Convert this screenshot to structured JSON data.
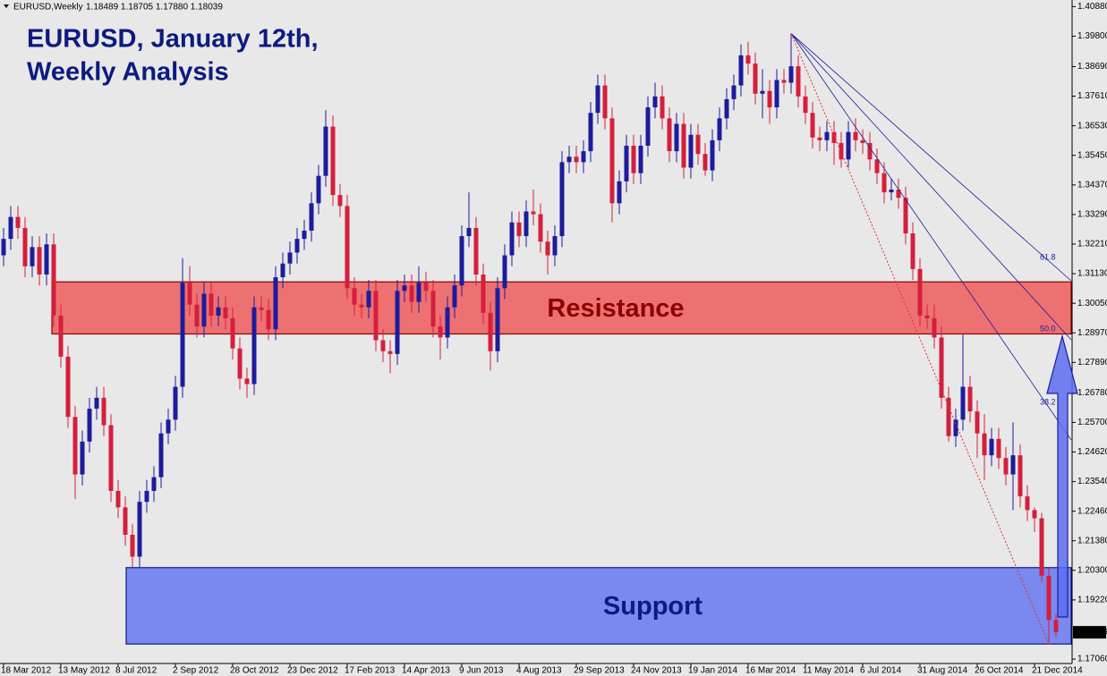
{
  "chart_data": {
    "type": "candlestick",
    "symbol": "EURUSD,Weekly",
    "ohlc_label": "1.18489 1.18705 1.17880 1.18039",
    "title_lines": [
      "EURUSD, January 12th,",
      "Weekly Analysis"
    ],
    "up_color": "#1c1c9c",
    "down_color": "#d41f3c",
    "ylim": [
      1.169,
      1.4112
    ],
    "yticks": [
      {
        "value": 1.4088,
        "label": "1.40880"
      },
      {
        "value": 1.398,
        "label": "1.39800"
      },
      {
        "value": 1.3869,
        "label": "1.38690"
      },
      {
        "value": 1.3761,
        "label": "1.37610"
      },
      {
        "value": 1.3653,
        "label": "1.36530"
      },
      {
        "value": 1.3545,
        "label": "1.35450"
      },
      {
        "value": 1.3437,
        "label": "1.34370"
      },
      {
        "value": 1.3329,
        "label": "1.33290"
      },
      {
        "value": 1.3221,
        "label": "1.32210"
      },
      {
        "value": 1.3113,
        "label": "1.31130"
      },
      {
        "value": 1.3005,
        "label": "1.30050"
      },
      {
        "value": 1.2897,
        "label": "1.28970"
      },
      {
        "value": 1.2789,
        "label": "1.27890"
      },
      {
        "value": 1.2678,
        "label": "1.26780"
      },
      {
        "value": 1.257,
        "label": "1.25700"
      },
      {
        "value": 1.2462,
        "label": "1.24620"
      },
      {
        "value": 1.2354,
        "label": "1.23540"
      },
      {
        "value": 1.2246,
        "label": "1.22460"
      },
      {
        "value": 1.2138,
        "label": "1.21380"
      },
      {
        "value": 1.203,
        "label": "1.20300"
      },
      {
        "value": 1.1922,
        "label": "1.19220"
      },
      {
        "value": 1.1706,
        "label": "1.17060"
      }
    ],
    "grid": false,
    "zones": [
      {
        "label": "Resistance",
        "low": 1.2893,
        "high": 1.3083,
        "color": "#ee6464"
      },
      {
        "label": "Support",
        "low": 1.1761,
        "high": 1.204,
        "color": "#6d7ef0"
      }
    ],
    "fib_fan": [
      "61.8",
      "50.0",
      "38.2"
    ],
    "categories": [
      "18 Mar 2012",
      null,
      null,
      null,
      null,
      null,
      null,
      null,
      "13 May 2012",
      null,
      null,
      null,
      null,
      null,
      null,
      null,
      "8 Jul 2012",
      null,
      null,
      null,
      null,
      null,
      null,
      null,
      "2 Sep 2012",
      null,
      null,
      null,
      null,
      null,
      null,
      null,
      "28 Oct 2012",
      null,
      null,
      null,
      null,
      null,
      null,
      null,
      "23 Dec 2012",
      null,
      null,
      null,
      null,
      null,
      null,
      null,
      "17 Feb 2013",
      null,
      null,
      null,
      null,
      null,
      null,
      null,
      "14 Apr 2013",
      null,
      null,
      null,
      null,
      null,
      null,
      null,
      "9 Jun 2013",
      null,
      null,
      null,
      null,
      null,
      null,
      null,
      "4 Aug 2013",
      null,
      null,
      null,
      null,
      null,
      null,
      null,
      "29 Sep 2013",
      null,
      null,
      null,
      null,
      null,
      null,
      null,
      "24 Nov 2013",
      null,
      null,
      null,
      null,
      null,
      null,
      null,
      "19 Jan 2014",
      null,
      null,
      null,
      null,
      null,
      null,
      null,
      "16 Mar 2014",
      null,
      null,
      null,
      null,
      null,
      null,
      null,
      "11 May 2014",
      null,
      null,
      null,
      null,
      null,
      null,
      null,
      "6 Jul 2014",
      null,
      null,
      null,
      null,
      null,
      null,
      null,
      "31 Aug 2014",
      null,
      null,
      null,
      null,
      null,
      null,
      null,
      "26 Oct 2014",
      null,
      null,
      null,
      null,
      null,
      null,
      null,
      "21 Dec 2014",
      null,
      null,
      null
    ],
    "open": [
      1.318,
      1.324,
      1.332,
      1.328,
      1.314,
      1.321,
      1.311,
      1.322,
      1.296,
      1.281,
      1.259,
      1.238,
      1.25,
      1.262,
      1.266,
      1.256,
      1.232,
      1.226,
      1.216,
      1.208,
      1.228,
      1.232,
      1.237,
      1.253,
      1.258,
      1.27,
      1.308,
      1.3,
      1.292,
      1.304,
      1.296,
      1.299,
      1.295,
      1.284,
      1.273,
      1.271,
      1.299,
      1.298,
      1.291,
      1.31,
      1.315,
      1.319,
      1.324,
      1.327,
      1.337,
      1.347,
      1.365,
      1.34,
      1.336,
      1.306,
      1.3,
      1.299,
      1.305,
      1.287,
      1.283,
      1.282,
      1.305,
      1.307,
      1.301,
      1.308,
      1.305,
      1.292,
      1.288,
      1.299,
      1.307,
      1.325,
      1.328,
      1.311,
      1.297,
      1.283,
      1.306,
      1.318,
      1.33,
      1.325,
      1.334,
      1.333,
      1.323,
      1.318,
      1.325,
      1.352,
      1.354,
      1.352,
      1.356,
      1.37,
      1.38,
      1.368,
      1.337,
      1.345,
      1.358,
      1.348,
      1.358,
      1.372,
      1.376,
      1.368,
      1.356,
      1.366,
      1.35,
      1.362,
      1.355,
      1.349,
      1.36,
      1.368,
      1.375,
      1.38,
      1.391,
      1.388,
      1.377,
      1.378,
      1.372,
      1.382,
      1.381,
      1.387,
      1.376,
      1.37,
      1.361,
      1.36,
      1.363,
      1.359,
      1.353,
      1.363,
      1.36,
      1.359,
      1.353,
      1.348,
      1.341,
      1.342,
      1.339,
      1.326,
      1.313,
      1.296,
      1.295,
      1.288,
      1.266,
      1.252,
      1.258,
      1.27,
      1.261,
      1.253,
      1.245,
      1.251,
      1.244,
      1.238,
      1.245,
      1.23,
      1.225,
      1.222,
      1.201,
      1.18489
    ],
    "high": [
      1.328,
      1.336,
      1.336,
      1.332,
      1.325,
      1.325,
      1.326,
      1.326,
      1.3,
      1.285,
      1.263,
      1.254,
      1.266,
      1.27,
      1.27,
      1.26,
      1.236,
      1.23,
      1.22,
      1.232,
      1.236,
      1.241,
      1.257,
      1.262,
      1.274,
      1.317,
      1.314,
      1.304,
      1.308,
      1.308,
      1.303,
      1.303,
      1.299,
      1.288,
      1.277,
      1.303,
      1.303,
      1.302,
      1.314,
      1.319,
      1.323,
      1.328,
      1.331,
      1.341,
      1.351,
      1.371,
      1.369,
      1.344,
      1.34,
      1.31,
      1.304,
      1.309,
      1.309,
      1.291,
      1.287,
      1.309,
      1.311,
      1.311,
      1.314,
      1.312,
      1.309,
      1.296,
      1.303,
      1.311,
      1.329,
      1.341,
      1.332,
      1.315,
      1.301,
      1.31,
      1.322,
      1.334,
      1.334,
      1.338,
      1.342,
      1.337,
      1.327,
      1.329,
      1.356,
      1.358,
      1.358,
      1.36,
      1.374,
      1.384,
      1.384,
      1.372,
      1.349,
      1.362,
      1.362,
      1.362,
      1.376,
      1.381,
      1.38,
      1.372,
      1.37,
      1.37,
      1.366,
      1.366,
      1.359,
      1.364,
      1.372,
      1.379,
      1.384,
      1.395,
      1.396,
      1.392,
      1.386,
      1.382,
      1.386,
      1.386,
      1.399,
      1.391,
      1.38,
      1.374,
      1.365,
      1.367,
      1.367,
      1.363,
      1.367,
      1.368,
      1.364,
      1.363,
      1.357,
      1.352,
      1.346,
      1.346,
      1.343,
      1.33,
      1.317,
      1.3,
      1.3,
      1.292,
      1.27,
      1.262,
      1.289,
      1.274,
      1.265,
      1.26,
      1.255,
      1.255,
      1.248,
      1.257,
      1.249,
      1.234,
      1.226,
      1.224,
      1.204,
      1.18705
    ],
    "low": [
      1.314,
      1.32,
      1.324,
      1.31,
      1.31,
      1.307,
      1.307,
      1.292,
      1.277,
      1.255,
      1.229,
      1.234,
      1.246,
      1.258,
      1.252,
      1.228,
      1.222,
      1.212,
      1.2042,
      1.204,
      1.224,
      1.228,
      1.233,
      1.249,
      1.254,
      1.266,
      1.296,
      1.288,
      1.288,
      1.292,
      1.292,
      1.291,
      1.28,
      1.269,
      1.266,
      1.267,
      1.294,
      1.287,
      1.287,
      1.306,
      1.311,
      1.315,
      1.32,
      1.323,
      1.333,
      1.343,
      1.336,
      1.332,
      1.302,
      1.296,
      1.295,
      1.295,
      1.283,
      1.279,
      1.275,
      1.278,
      1.301,
      1.297,
      1.297,
      1.301,
      1.288,
      1.28,
      1.284,
      1.295,
      1.303,
      1.321,
      1.307,
      1.293,
      1.276,
      1.279,
      1.302,
      1.314,
      1.321,
      1.321,
      1.329,
      1.319,
      1.311,
      1.314,
      1.321,
      1.348,
      1.348,
      1.348,
      1.352,
      1.366,
      1.364,
      1.33,
      1.333,
      1.341,
      1.344,
      1.344,
      1.354,
      1.368,
      1.364,
      1.352,
      1.352,
      1.346,
      1.346,
      1.351,
      1.347,
      1.345,
      1.356,
      1.364,
      1.371,
      1.376,
      1.384,
      1.373,
      1.368,
      1.366,
      1.368,
      1.377,
      1.377,
      1.372,
      1.366,
      1.357,
      1.356,
      1.356,
      1.351,
      1.35,
      1.35,
      1.356,
      1.355,
      1.349,
      1.344,
      1.337,
      1.338,
      1.335,
      1.322,
      1.309,
      1.292,
      1.291,
      1.284,
      1.262,
      1.25,
      1.248,
      1.254,
      1.257,
      1.244,
      1.236,
      1.241,
      1.24,
      1.234,
      1.225,
      1.226,
      1.221,
      1.217,
      1.199,
      1.176,
      1.1788
    ],
    "close": [
      1.324,
      1.332,
      1.328,
      1.314,
      1.321,
      1.311,
      1.322,
      1.296,
      1.281,
      1.259,
      1.238,
      1.25,
      1.262,
      1.266,
      1.256,
      1.232,
      1.226,
      1.216,
      1.208,
      1.228,
      1.232,
      1.237,
      1.253,
      1.258,
      1.27,
      1.308,
      1.3,
      1.292,
      1.304,
      1.296,
      1.299,
      1.295,
      1.284,
      1.273,
      1.271,
      1.299,
      1.298,
      1.291,
      1.31,
      1.315,
      1.319,
      1.324,
      1.327,
      1.337,
      1.347,
      1.365,
      1.34,
      1.336,
      1.306,
      1.3,
      1.299,
      1.305,
      1.287,
      1.283,
      1.282,
      1.305,
      1.307,
      1.301,
      1.308,
      1.305,
      1.292,
      1.288,
      1.299,
      1.307,
      1.325,
      1.328,
      1.311,
      1.297,
      1.283,
      1.306,
      1.318,
      1.33,
      1.325,
      1.334,
      1.333,
      1.323,
      1.318,
      1.325,
      1.352,
      1.354,
      1.352,
      1.356,
      1.37,
      1.38,
      1.368,
      1.337,
      1.345,
      1.358,
      1.348,
      1.358,
      1.372,
      1.376,
      1.368,
      1.356,
      1.366,
      1.35,
      1.362,
      1.355,
      1.349,
      1.36,
      1.368,
      1.375,
      1.38,
      1.391,
      1.388,
      1.377,
      1.378,
      1.372,
      1.382,
      1.381,
      1.387,
      1.376,
      1.37,
      1.361,
      1.36,
      1.363,
      1.359,
      1.353,
      1.363,
      1.36,
      1.359,
      1.353,
      1.348,
      1.341,
      1.342,
      1.339,
      1.326,
      1.313,
      1.296,
      1.295,
      1.288,
      1.266,
      1.252,
      1.258,
      1.27,
      1.261,
      1.253,
      1.245,
      1.251,
      1.244,
      1.238,
      1.245,
      1.23,
      1.225,
      1.222,
      1.201,
      1.18489,
      1.18039
    ]
  }
}
